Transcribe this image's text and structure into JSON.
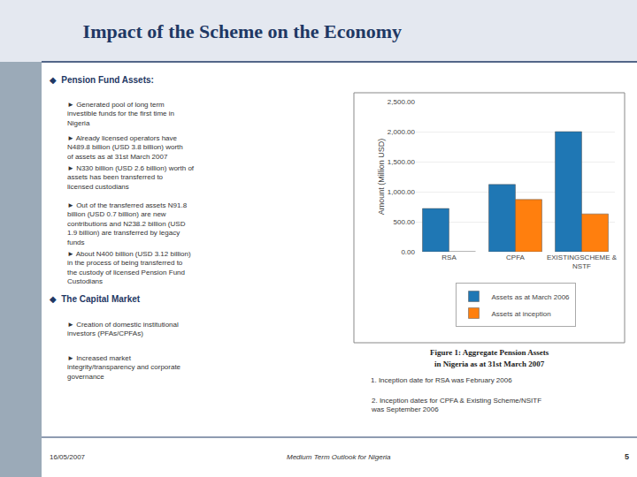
{
  "chart_data": {
    "type": "bar",
    "title": "Impact of the Scheme on the Economy",
    "categories": [
      "RSA",
      "CPFA",
      "EXISTINGSCHEME &\nNSTF"
    ],
    "series": [
      {
        "name": "Assets as at March 2006",
        "values": [
          720,
          1120,
          2000
        ]
      },
      {
        "name": "Assets at inception",
        "values": [
          0,
          870,
          630
        ]
      }
    ],
    "ylabel": "Amount (Million USD)",
    "ylim": [
      0,
      2500
    ],
    "yticks": [
      {
        "value": 0,
        "label": "0.00"
      },
      {
        "value": 500,
        "label": "500.00"
      },
      {
        "value": 1000,
        "label": "1,000.00"
      },
      {
        "value": 1500,
        "label": "1,500.00"
      },
      {
        "value": 2000,
        "label": "2,000.00"
      },
      {
        "value": 2500,
        "label": "2,500.00"
      }
    ],
    "grid": true,
    "legend": "bottom",
    "annotations": [
      "◆  Pension Fund Assets:",
      "► Generated pool of long term\ninvestible funds for the first time in\nNigeria",
      "► Already licensed operators have\nN489.8 billion (USD 3.8 billion) worth\nof assets as at 31st March 2007",
      "► N330 billion (USD 2.6 billion) worth of\nassets has been transferred to\nlicensed custodians",
      "► Out of the transferred assets N91.8\nbillion (USD 0.7 billion) are new\ncontributions and N238.2 billion (USD\n1.9 billion) are transferred by legacy\nfunds",
      "► About N400 billion (USD 3.12 billion)\nin the process of being transferred to\nthe custody of licensed Pension Fund\nCustodians",
      "◆  The Capital Market",
      "► Creation of domestic institutional\ninvestors (PFAs/CPFAs)",
      "► Increased market\nintegrity/transparency and corporate\ngovernance",
      "1. Inception date for RSA was February 2006",
      "2. Inception dates for CPFA & Existing Scheme/NSITF\nwas September 2006",
      "Figure 1: Aggregate Pension Assets",
      "in Nigeria as at 31st March 2007",
      "16/05/2007",
      "Medium Term Outlook for Nigeria",
      "5"
    ]
  }
}
